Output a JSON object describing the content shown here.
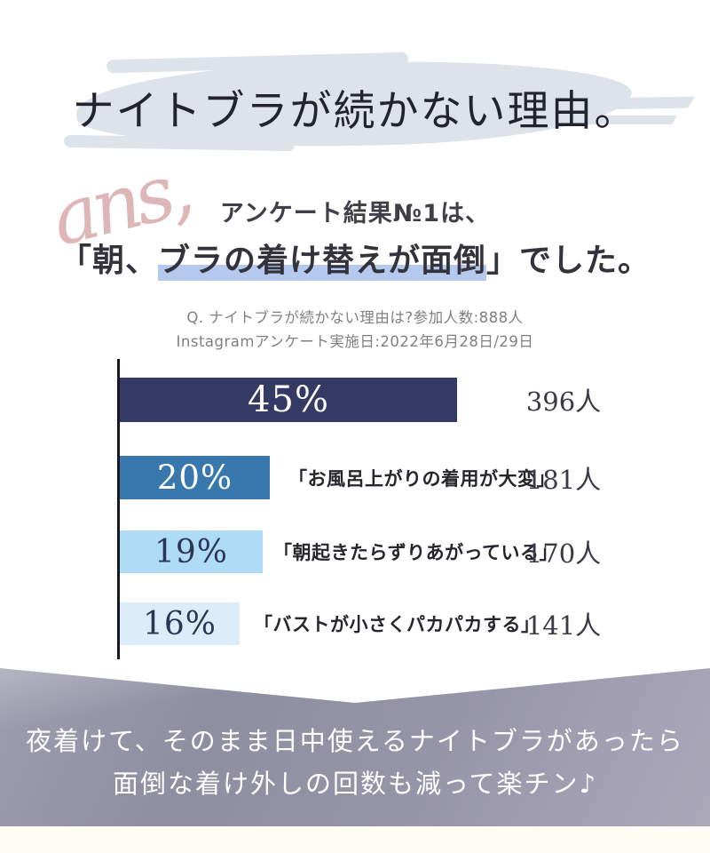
{
  "header": {
    "title": "ナイトブラが続かない理由。",
    "script_decoration": "ans,",
    "subtitle": "アンケート結果№1は、",
    "answer": {
      "prefix": "「朝、",
      "highlight": "ブラの着け替えが面倒",
      "suffix": "」でした。"
    },
    "note_line1": "Q. ナイトブラが続かない理由は?参加人数:888人",
    "note_line2": "Instagramアンケート実施日:2022年6月28日/29日"
  },
  "chart_data": {
    "type": "bar",
    "orientation": "horizontal",
    "question": "ナイトブラが続かない理由は?",
    "participants": 888,
    "xlim": [
      0,
      47
    ],
    "grid": false,
    "legend": false,
    "bars": [
      {
        "percent": 45,
        "percent_label": "45%",
        "label": "",
        "count": "396人",
        "color": "#343a64",
        "percent_color": "#ffffff"
      },
      {
        "percent": 20,
        "percent_label": "20%",
        "label": "「お風呂上がりの着用が大変」",
        "count": "181人",
        "color": "#3978ad",
        "percent_color": "#ffffff"
      },
      {
        "percent": 19,
        "percent_label": "19%",
        "label": "「朝起きたらずりあがっている」",
        "count": "170人",
        "color": "#aedcf7",
        "percent_color": "#2c3554"
      },
      {
        "percent": 16,
        "percent_label": "16%",
        "label": "「バストが小さくパカパカする」",
        "count": "141人",
        "color": "#dcecf9",
        "percent_color": "#2c3554"
      }
    ]
  },
  "footer": {
    "line1": "夜着けて、そのまま日中使えるナイトブラがあったら",
    "line2": "面倒な着け外しの回数も減って楽チン♪"
  },
  "colors": {
    "brush": "#dee3e9",
    "highlight": "#b5c9ef",
    "script_pink": "#ddb6b8",
    "title_text": "#23232e",
    "axis": "#17171f",
    "note_text": "#808080",
    "footer_text": "#ffffff",
    "footer_bg_start": "#9c9dae",
    "footer_bg_end": "#aaa8b9"
  }
}
